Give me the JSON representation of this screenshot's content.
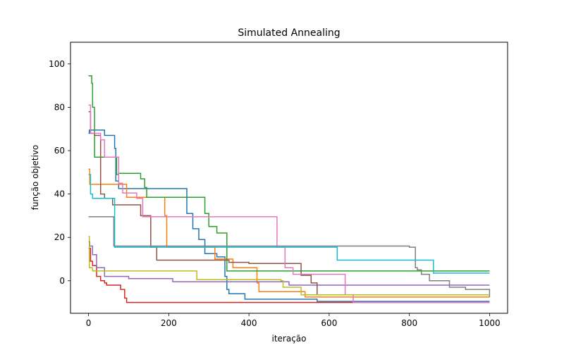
{
  "chart_data": {
    "type": "line",
    "title": "Simulated Annealing",
    "xlabel": "iteração",
    "ylabel": "função objetivo",
    "xlim": [
      -45,
      1045
    ],
    "ylim": [
      -15,
      110
    ],
    "xticks": [
      0,
      200,
      400,
      600,
      800,
      1000
    ],
    "yticks": [
      0,
      20,
      40,
      60,
      80,
      100
    ],
    "grid": false,
    "legend": "none",
    "series": [
      {
        "color": "#1f77b4",
        "x": [
          0,
          2,
          5,
          40,
          65,
          68,
          75,
          240,
          245,
          260,
          275,
          290,
          320,
          340,
          345,
          350,
          390,
          470,
          570,
          1000
        ],
        "y": [
          68,
          69.5,
          69.5,
          67,
          61,
          46,
          42.5,
          42.5,
          31,
          24,
          19,
          12.5,
          11,
          2,
          -4,
          -6,
          -8.5,
          -8.5,
          -9.5,
          -9.5
        ]
      },
      {
        "color": "#ff7f0e",
        "x": [
          0,
          3,
          5,
          95,
          175,
          190,
          195,
          310,
          315,
          360,
          410,
          420,
          425,
          540,
          1000
        ],
        "y": [
          51.5,
          44.5,
          44.5,
          38.5,
          38.5,
          30,
          15.5,
          15.5,
          10,
          6,
          6,
          -1,
          -5,
          -7.5,
          -7.5
        ]
      },
      {
        "color": "#2ca02c",
        "x": [
          0,
          5,
          8,
          10,
          15,
          50,
          70,
          75,
          130,
          140,
          145,
          285,
          290,
          300,
          320,
          330,
          345,
          400,
          1000
        ],
        "y": [
          94.5,
          94.5,
          91,
          80,
          57,
          57,
          49,
          49.5,
          47,
          43,
          38.5,
          38.5,
          31,
          25,
          22,
          22,
          4.5,
          4.5,
          4.5
        ]
      },
      {
        "color": "#d62728",
        "x": [
          0,
          5,
          10,
          20,
          30,
          40,
          45,
          60,
          80,
          90,
          95,
          240,
          500,
          1000
        ],
        "y": [
          15,
          9,
          7,
          2,
          0,
          -1,
          -2,
          -2,
          -4,
          -8,
          -10,
          -10,
          -10,
          -10
        ]
      },
      {
        "color": "#9467bd",
        "x": [
          0,
          3,
          10,
          20,
          40,
          90,
          100,
          210,
          400,
          500,
          1000
        ],
        "y": [
          18,
          16,
          12,
          6,
          2,
          2,
          1,
          -0.5,
          -0.5,
          -2,
          -2
        ]
      },
      {
        "color": "#8c564b",
        "x": [
          0,
          5,
          15,
          30,
          40,
          60,
          100,
          130,
          155,
          170,
          320,
          350,
          400,
          530,
          555,
          570,
          1000
        ],
        "y": [
          78,
          68,
          67,
          40,
          38,
          35,
          35,
          30,
          15.5,
          9.5,
          9.5,
          8.5,
          8,
          2.5,
          -1,
          -6.5,
          -6.5
        ]
      },
      {
        "color": "#e377c2",
        "x": [
          0,
          5,
          30,
          40,
          70,
          75,
          85,
          120,
          135,
          380,
          470,
          490,
          510,
          640,
          660,
          1000
        ],
        "y": [
          81,
          68,
          65,
          57,
          57,
          45,
          40.5,
          38,
          29.5,
          29.5,
          15.5,
          6,
          3,
          -6.5,
          -10,
          -10
        ]
      },
      {
        "color": "#7f7f7f",
        "x": [
          0,
          60,
          63,
          800,
          815,
          820,
          830,
          850,
          900,
          940,
          1000
        ],
        "y": [
          29.5,
          29.5,
          16,
          15.5,
          6,
          5,
          3,
          0,
          -3,
          -4,
          -7.5
        ]
      },
      {
        "color": "#bcbd22",
        "x": [
          0,
          2,
          10,
          20,
          90,
          270,
          275,
          440,
          480,
          485,
          530,
          1000
        ],
        "y": [
          20.5,
          6,
          4.5,
          4.5,
          4.5,
          0.5,
          0.5,
          0.5,
          0,
          -3,
          -6.5,
          -6.5
        ]
      },
      {
        "color": "#17becf",
        "x": [
          0,
          5,
          10,
          60,
          65,
          70,
          590,
          620,
          855,
          860,
          1000
        ],
        "y": [
          49,
          40,
          38,
          38,
          15.5,
          15.5,
          15.5,
          9.5,
          9.5,
          3.5,
          3.5
        ]
      }
    ]
  }
}
